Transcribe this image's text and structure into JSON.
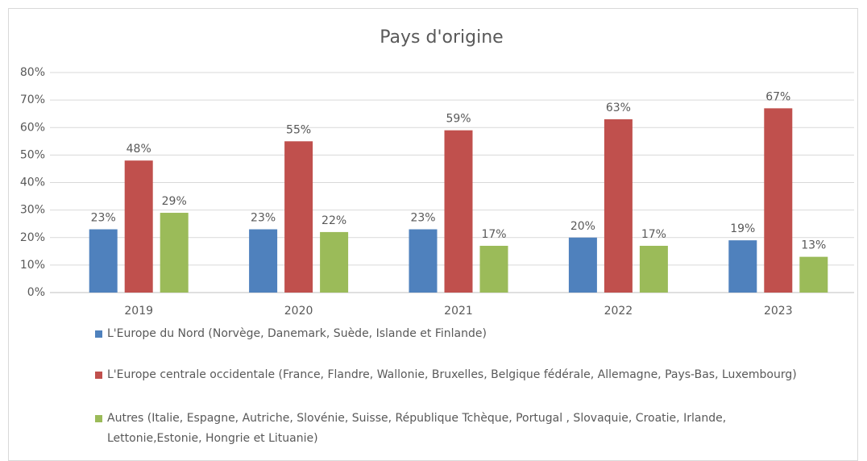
{
  "chart_data": {
    "type": "bar",
    "title": "Pays d'origine",
    "categories": [
      "2019",
      "2020",
      "2021",
      "2022",
      "2023"
    ],
    "series": [
      {
        "name": "L'Europe du Nord (Norvège, Danemark, Suède, Islande et Finlande)",
        "color": "#4f81bd",
        "values": [
          23,
          23,
          23,
          20,
          19
        ],
        "value_labels": [
          "23%",
          "23%",
          "23%",
          "20%",
          "19%"
        ]
      },
      {
        "name": "L'Europe centrale occidentale (France, Flandre, Wallonie, Bruxelles, Belgique fédérale, Allemagne, Pays-Bas, Luxembourg)",
        "color": "#c0504d",
        "values": [
          48,
          55,
          59,
          63,
          67
        ],
        "value_labels": [
          "48%",
          "55%",
          "59%",
          "63%",
          "67%"
        ]
      },
      {
        "name": "Autres (Italie, Espagne, Autriche, Slovénie, Suisse, République Tchèque, Portugal , Slovaquie, Croatie, Irlande, Lettonie,Estonie, Hongrie et Lituanie)",
        "color": "#9bbb59",
        "values": [
          29,
          22,
          17,
          17,
          13
        ],
        "value_labels": [
          "29%",
          "22%",
          "17%",
          "17%",
          "13%"
        ]
      }
    ],
    "ylim": [
      0,
      80
    ],
    "yticks": [
      {
        "value": 0,
        "label": "0%"
      },
      {
        "value": 10,
        "label": "10%"
      },
      {
        "value": 20,
        "label": "20%"
      },
      {
        "value": 30,
        "label": "30%"
      },
      {
        "value": 40,
        "label": "40%"
      },
      {
        "value": 50,
        "label": "50%"
      },
      {
        "value": 60,
        "label": "60%"
      },
      {
        "value": 70,
        "label": "70%"
      },
      {
        "value": 80,
        "label": "80%"
      }
    ],
    "grid": true
  }
}
